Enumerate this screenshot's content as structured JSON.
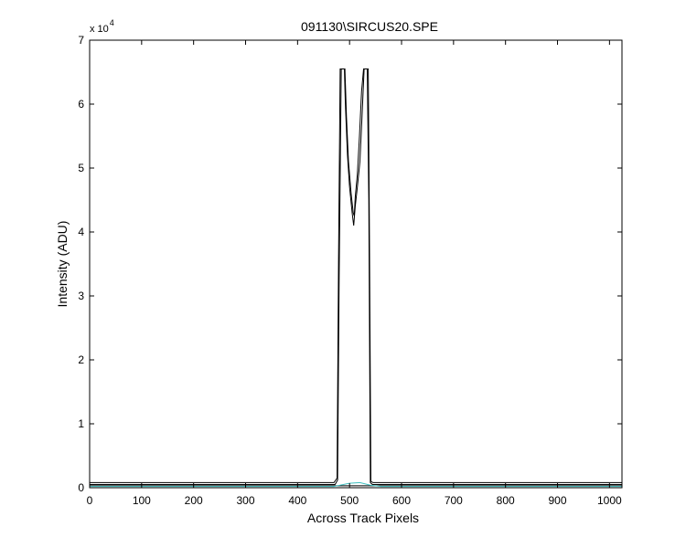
{
  "chart_data": {
    "type": "line",
    "title": "091130\\SIRCUS20.SPE",
    "xlabel": "Across Track Pixels",
    "ylabel": "Intensity (ADU)",
    "y_multiplier": {
      "base": "x 10",
      "exponent": "4"
    },
    "xlim": [
      0,
      1024
    ],
    "ylim": [
      0,
      70000
    ],
    "x_ticks": [
      0,
      100,
      200,
      300,
      400,
      500,
      600,
      700,
      800,
      900,
      1000
    ],
    "y_ticks": [
      0,
      10000,
      20000,
      30000,
      40000,
      50000,
      60000,
      70000
    ],
    "y_tick_labels": [
      "0",
      "1",
      "2",
      "3",
      "4",
      "5",
      "6",
      "7"
    ],
    "grid": false,
    "legend": "none",
    "series": [
      {
        "color": "#000000",
        "points": [
          [
            0,
            800
          ],
          [
            470,
            800
          ],
          [
            476,
            1500
          ],
          [
            479,
            37000
          ],
          [
            482,
            65500
          ],
          [
            490,
            65500
          ],
          [
            492,
            60000
          ],
          [
            496,
            52000
          ],
          [
            500,
            47000
          ],
          [
            505,
            43000
          ],
          [
            508,
            41000
          ],
          [
            511,
            44000
          ],
          [
            515,
            47000
          ],
          [
            520,
            51000
          ],
          [
            524,
            58000
          ],
          [
            528,
            65500
          ],
          [
            536,
            65500
          ],
          [
            538,
            42000
          ],
          [
            541,
            1000
          ],
          [
            545,
            800
          ],
          [
            1024,
            800
          ]
        ]
      },
      {
        "color": "#000000",
        "points": [
          [
            0,
            500
          ],
          [
            472,
            500
          ],
          [
            477,
            1200
          ],
          [
            480,
            33000
          ],
          [
            484,
            65500
          ],
          [
            491,
            65500
          ],
          [
            494,
            58000
          ],
          [
            498,
            51000
          ],
          [
            503,
            46000
          ],
          [
            507,
            43000
          ],
          [
            509,
            42500
          ],
          [
            511,
            45500
          ],
          [
            515,
            49000
          ],
          [
            519,
            55000
          ],
          [
            523,
            62000
          ],
          [
            527,
            65500
          ],
          [
            534,
            65500
          ],
          [
            537,
            45000
          ],
          [
            540,
            800
          ],
          [
            544,
            500
          ],
          [
            1024,
            500
          ]
        ]
      },
      {
        "color": "#000000",
        "points": [
          [
            0,
            300
          ],
          [
            1024,
            300
          ]
        ]
      },
      {
        "color": "#40c0c0",
        "points": [
          [
            0,
            200
          ],
          [
            470,
            200
          ],
          [
            500,
            700
          ],
          [
            520,
            800
          ],
          [
            540,
            400
          ],
          [
            560,
            200
          ],
          [
            1024,
            200
          ]
        ]
      }
    ]
  }
}
